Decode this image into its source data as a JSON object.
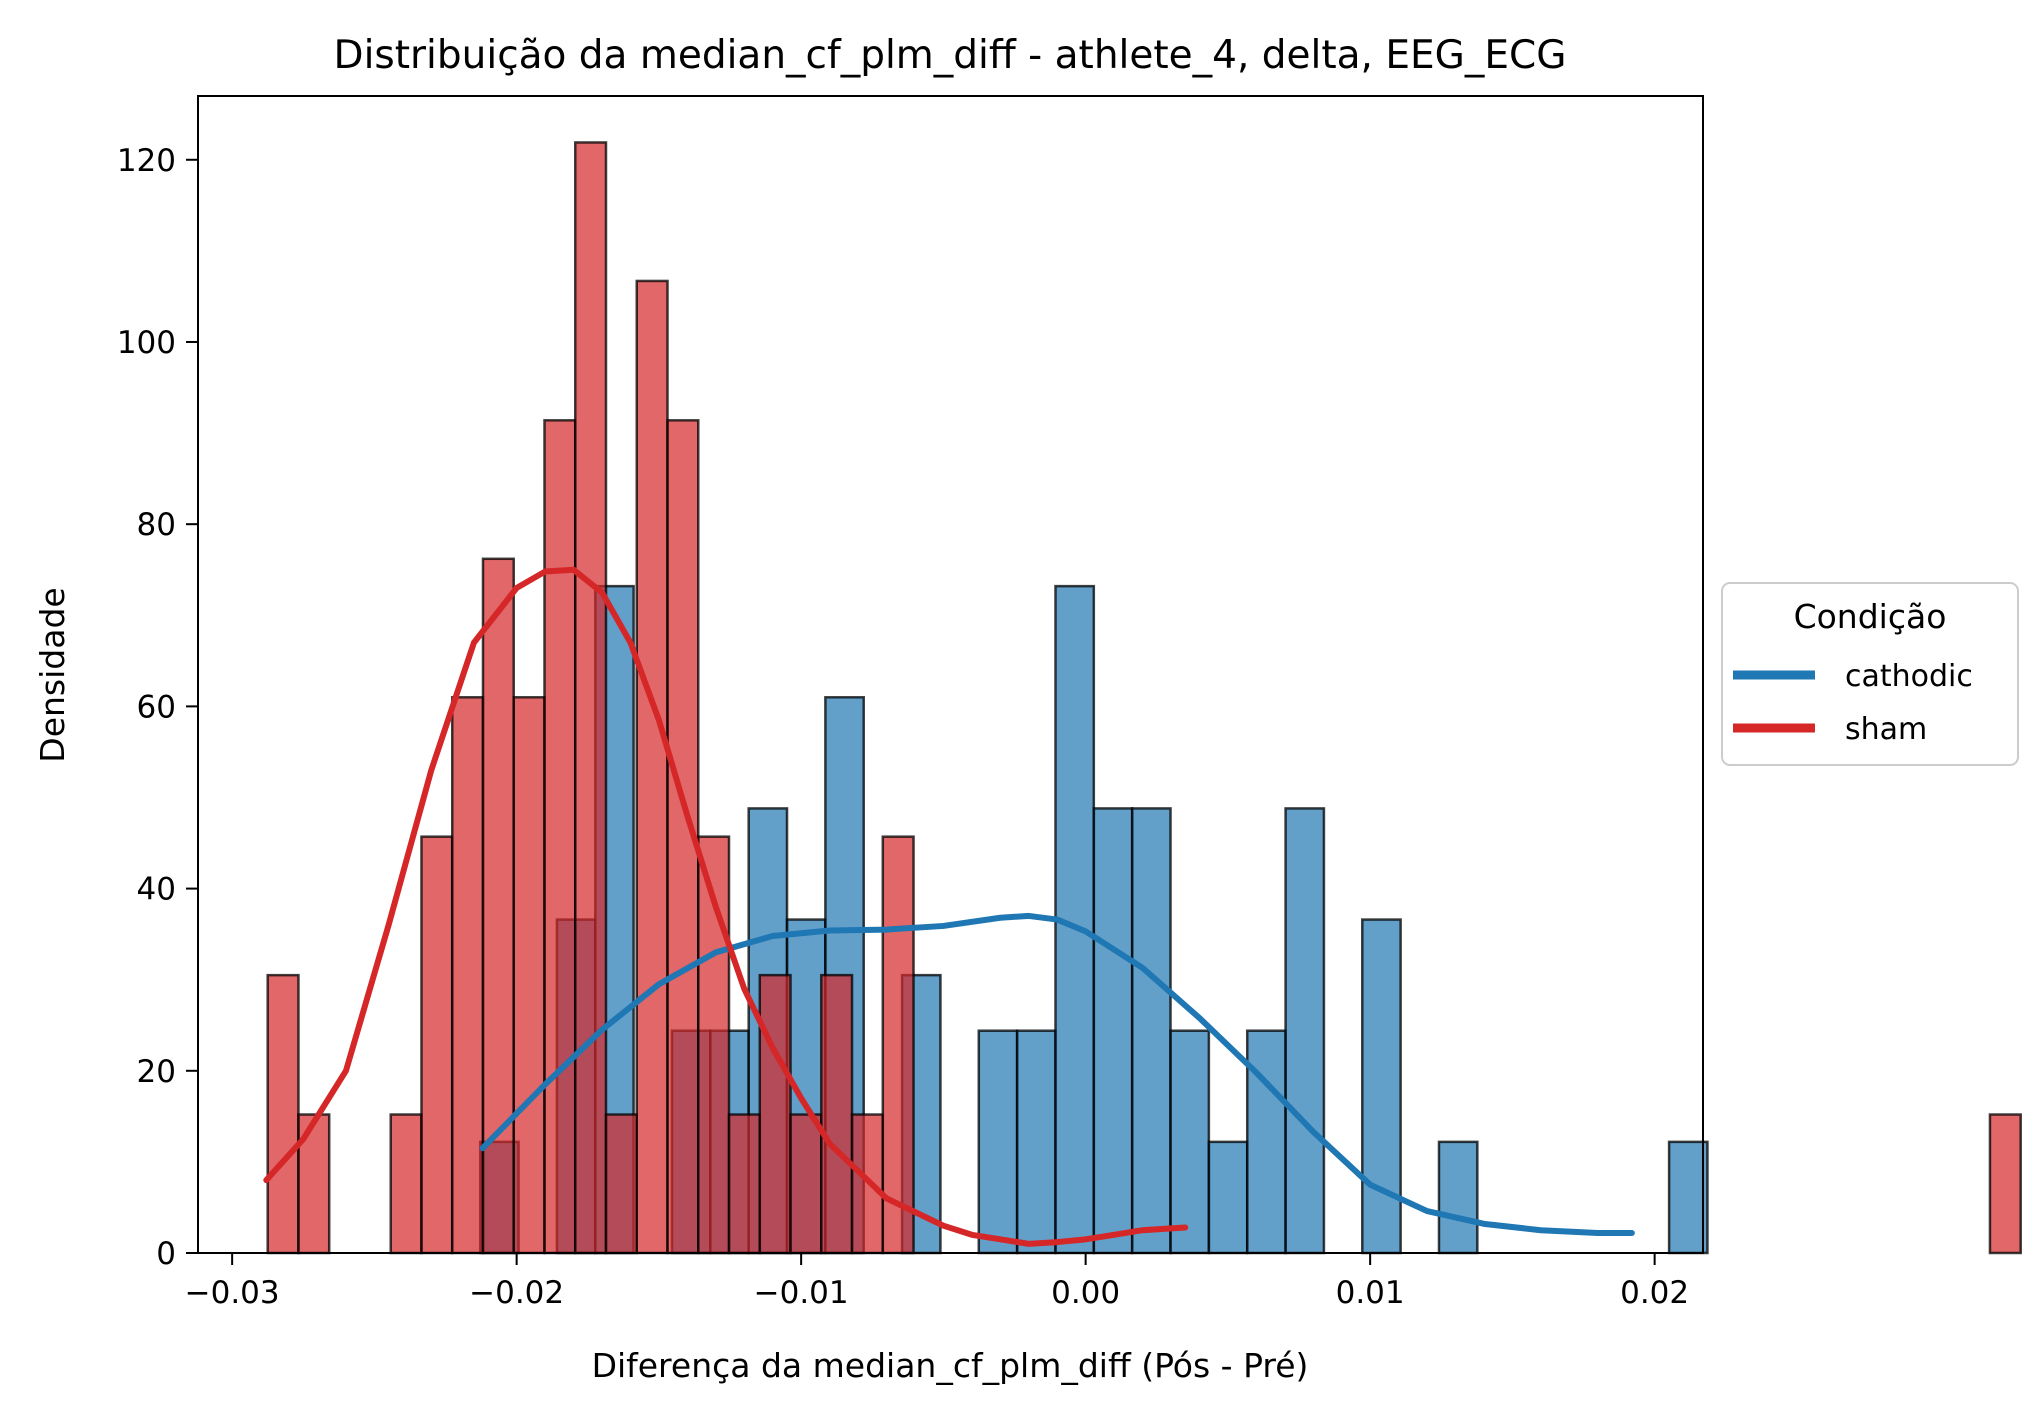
{
  "chart_data": {
    "type": "histogram",
    "title": "Distribuição da median_cf_plm_diff - athlete_4, delta, EEG_ECG",
    "xlabel": "Diferença da median_cf_plm_diff (Pós - Pré)",
    "ylabel": "Densidade",
    "xlim": [
      -0.0312,
      0.0217
    ],
    "ylim": [
      0,
      127
    ],
    "xticks": [
      -0.03,
      -0.02,
      -0.01,
      0.0,
      0.01,
      0.02
    ],
    "xtick_labels": [
      "−0.03",
      "−0.02",
      "−0.01",
      "0.00",
      "0.01",
      "0.02"
    ],
    "yticks": [
      0,
      20,
      40,
      60,
      80,
      100,
      120
    ],
    "ytick_labels": [
      "0",
      "20",
      "40",
      "60",
      "80",
      "100",
      "120"
    ],
    "grid": false,
    "legend": {
      "title": "Condição",
      "placement": "center-right outside"
    },
    "series": [
      {
        "name": "cathodic",
        "color": "#1f77b4",
        "bin_start": -0.02128,
        "bin_width": 0.001348,
        "counts": [
          12.2,
          0,
          36.6,
          73.2,
          0,
          24.4,
          24.4,
          48.8,
          36.6,
          61,
          0,
          30.5,
          0,
          24.4,
          24.4,
          73.2,
          48.8,
          48.8,
          24.4,
          12.2,
          24.4,
          48.8,
          0,
          36.6,
          0,
          12.2,
          0,
          0,
          0,
          0,
          0,
          12.2
        ],
        "kde": {
          "x": [
            -0.0212,
            -0.019,
            -0.017,
            -0.015,
            -0.013,
            -0.011,
            -0.009,
            -0.007,
            -0.005,
            -0.003,
            -0.002,
            -0.001,
            0.0,
            0.002,
            0.004,
            0.006,
            0.008,
            0.01,
            0.012,
            0.014,
            0.016,
            0.018,
            0.0192
          ],
          "y": [
            11.5,
            18.5,
            24.5,
            29.5,
            33.0,
            34.8,
            35.4,
            35.5,
            35.9,
            36.8,
            37.0,
            36.6,
            35.3,
            31.3,
            25.8,
            19.8,
            13.3,
            7.5,
            4.6,
            3.2,
            2.5,
            2.2,
            2.2
          ]
        }
      },
      {
        "name": "sham",
        "color": "#d62728",
        "bin_start": -0.02875,
        "bin_width": 0.001081,
        "counts": [
          30.5,
          15.2,
          0,
          0,
          15.2,
          45.7,
          61,
          76.2,
          61,
          91.4,
          121.9,
          15.2,
          106.7,
          91.4,
          45.7,
          15.2,
          30.5,
          15.2,
          30.5,
          15.2,
          45.7,
          0,
          0,
          0,
          0,
          0,
          0,
          0,
          0,
          0,
          0,
          0,
          0,
          0,
          0,
          0,
          0,
          0,
          0,
          0,
          0,
          0,
          0,
          0,
          0,
          0,
          0,
          0,
          0,
          0,
          0,
          0,
          0,
          0,
          0,
          0,
          15.2
        ],
        "overlaid_counts": {
          "start_index": 14,
          "values": [
            45.7,
            15.2,
            30.5,
            15.2,
            30.5,
            15.2,
            45.7
          ]
        },
        "kde": {
          "x": [
            -0.0288,
            -0.0275,
            -0.026,
            -0.0245,
            -0.023,
            -0.0215,
            -0.02,
            -0.019,
            -0.018,
            -0.017,
            -0.016,
            -0.015,
            -0.014,
            -0.013,
            -0.012,
            -0.011,
            -0.01,
            -0.009,
            -0.008,
            -0.007,
            -0.006,
            -0.005,
            -0.004,
            -0.003,
            -0.002,
            -0.001,
            0.0,
            0.001,
            0.002,
            0.0035
          ],
          "y": [
            8.0,
            12.5,
            20.0,
            36.0,
            53.0,
            67.0,
            73.0,
            74.8,
            75.0,
            72.5,
            67.0,
            58.5,
            48.0,
            38.0,
            29.0,
            22.5,
            17.0,
            12.0,
            9.0,
            6.0,
            4.5,
            3.0,
            2.0,
            1.5,
            1.0,
            1.2,
            1.5,
            2.0,
            2.5,
            2.8
          ]
        }
      }
    ]
  }
}
